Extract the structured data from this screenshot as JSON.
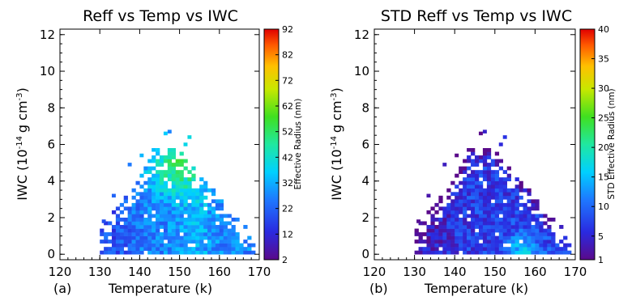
{
  "chart_data": [
    {
      "type": "heatmap",
      "panel_label": "(a)",
      "title": "Reff vs Temp vs IWC",
      "xlabel": "Temperature (k)",
      "ylabel_text": "IWC (10",
      "ylabel_exp": "-14",
      "ylabel_unit": "g cm",
      "ylabel_unit_exp": "-3",
      "ylabel_close": ")",
      "xlim": [
        120,
        170
      ],
      "ylim": [
        -0.3,
        12.3
      ],
      "x_ticks": [
        "120",
        "130",
        "140",
        "150",
        "160",
        "170"
      ],
      "y_ticks": [
        "0",
        "2",
        "4",
        "6",
        "8",
        "10",
        "12"
      ],
      "colorbar": {
        "label": "Effective Radius (nm)",
        "range": [
          2,
          92
        ],
        "ticks": [
          "2",
          "12",
          "22",
          "32",
          "42",
          "52",
          "62",
          "72",
          "82",
          "92"
        ]
      },
      "value_pattern": "most cells 10–40 nm; highest values (~45–60 nm) around 145–155 K at IWC 4–6; ~20 nm near 130–135 K at low IWC"
    },
    {
      "type": "heatmap",
      "panel_label": "(b)",
      "title": "STD Reff vs Temp vs IWC",
      "xlabel": "Temperature (k)",
      "ylabel_text": "IWC (10",
      "ylabel_exp": "-14",
      "ylabel_unit": "g cm",
      "ylabel_unit_exp": "-3",
      "ylabel_close": ")",
      "xlim": [
        120,
        170
      ],
      "ylim": [
        -0.3,
        12.3
      ],
      "x_ticks": [
        "120",
        "130",
        "140",
        "150",
        "160",
        "170"
      ],
      "y_ticks": [
        "0",
        "2",
        "4",
        "6",
        "8",
        "10",
        "12"
      ],
      "colorbar": {
        "label": "STD Effective Radius (nm)",
        "range": [
          1,
          40
        ],
        "ticks": [
          "1",
          "5",
          "10",
          "15",
          "20",
          "25",
          "30",
          "35",
          "40"
        ]
      },
      "value_pattern": "mostly 1–10 nm; lowest (violet) near top edge and 130–140 K; up to ~15–20 nm near 150–160 K at IWC 0–1"
    }
  ]
}
